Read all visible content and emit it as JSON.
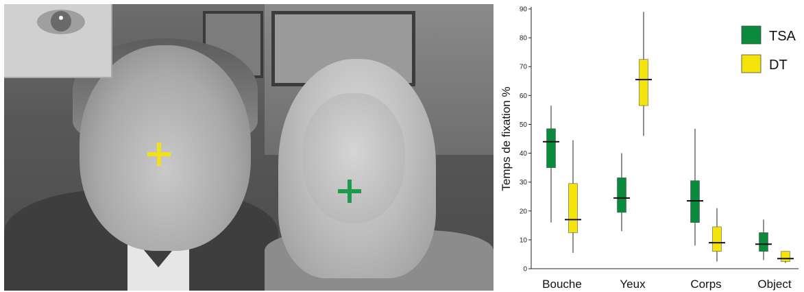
{
  "photo": {
    "markers": [
      {
        "group": "DT",
        "color": "#f2df1e"
      },
      {
        "group": "TSA",
        "color": "#1f9a4c"
      }
    ]
  },
  "chart_data": {
    "type": "box",
    "categories": [
      "Bouche",
      "Yeux",
      "Corps",
      "Object"
    ],
    "ylabel": "Temps de fixation %",
    "ylim": [
      0,
      90
    ],
    "yticks": [
      0,
      10,
      20,
      30,
      40,
      50,
      60,
      70,
      80,
      90
    ],
    "legend_position": "top-right",
    "series": [
      {
        "name": "TSA",
        "color": "#0a8a3c",
        "boxes": [
          {
            "whisker_low": 16,
            "q1": 35,
            "median": 44,
            "q3": 48.5,
            "whisker_high": 56.5
          },
          {
            "whisker_low": 13,
            "q1": 19.5,
            "median": 24.5,
            "q3": 31.5,
            "whisker_high": 40
          },
          {
            "whisker_low": 8,
            "q1": 16,
            "median": 23.5,
            "q3": 30.5,
            "whisker_high": 48.5
          },
          {
            "whisker_low": 3,
            "q1": 6,
            "median": 8.5,
            "q3": 12.5,
            "whisker_high": 17
          }
        ]
      },
      {
        "name": "DT",
        "color": "#f5e40c",
        "boxes": [
          {
            "whisker_low": 5.5,
            "q1": 12.5,
            "median": 17,
            "q3": 29.5,
            "whisker_high": 44.5
          },
          {
            "whisker_low": 46,
            "q1": 56.5,
            "median": 65.5,
            "q3": 72.5,
            "whisker_high": 89
          },
          {
            "whisker_low": 2.5,
            "q1": 6,
            "median": 9,
            "q3": 14.5,
            "whisker_high": 21
          },
          {
            "whisker_low": 2,
            "q1": 2.5,
            "median": 3.5,
            "q3": 6,
            "whisker_high": 6
          }
        ]
      }
    ]
  }
}
